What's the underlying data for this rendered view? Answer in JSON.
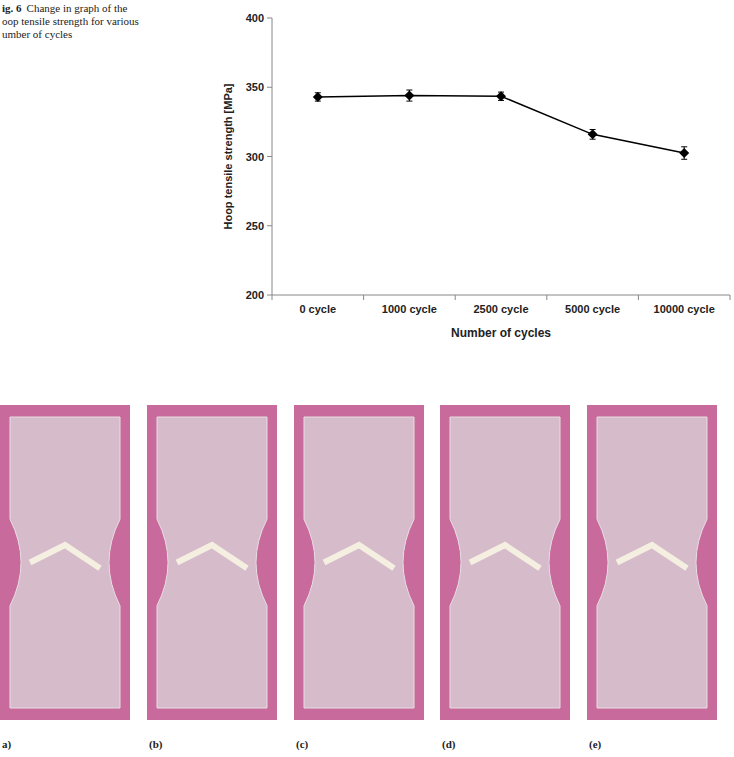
{
  "chart_data": {
    "type": "line",
    "categories": [
      "0 cycle",
      "1000 cycle",
      "2500 cycle",
      "5000 cycle",
      "10000 cycle"
    ],
    "values": [
      343,
      344,
      343.5,
      316,
      302.5
    ],
    "errors": [
      3,
      4,
      3,
      3.5,
      4.5
    ],
    "ylim": [
      200,
      400
    ],
    "yticks": [
      200,
      250,
      300,
      350,
      400
    ],
    "y_label": "Hoop tensile strength [MPa]",
    "x_label": "Number of cycles",
    "color": "#000000",
    "marker": "diamond",
    "grid": false
  },
  "figure": {
    "caption_label": "ig. 6",
    "caption_lines": [
      "Change in graph of the",
      "oop tensile strength for various",
      "umber of cycles"
    ],
    "panel_labels": [
      "a)",
      "(b)",
      "(c)",
      "(d)",
      "(e)"
    ]
  }
}
